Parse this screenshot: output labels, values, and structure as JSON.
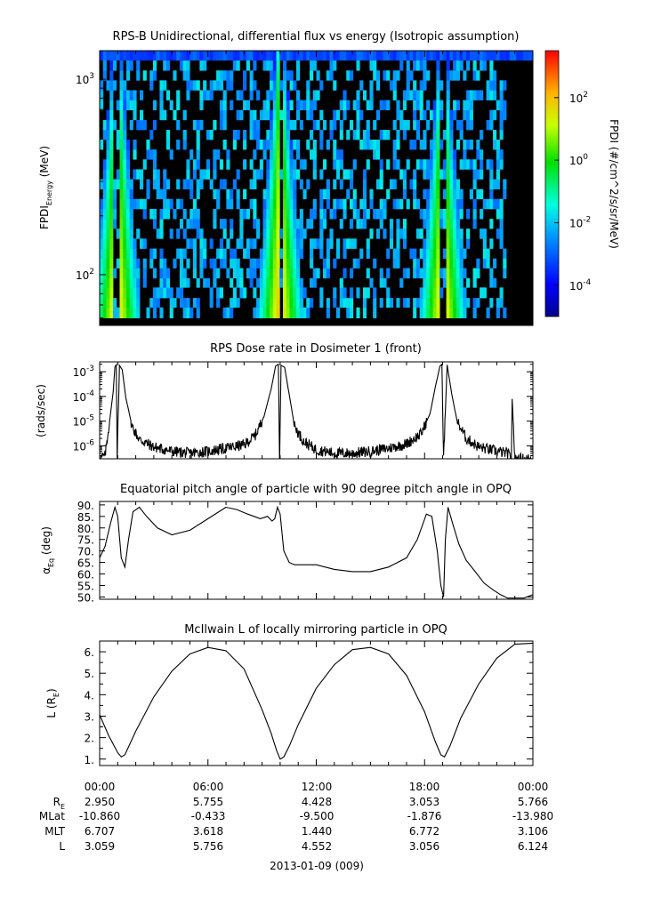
{
  "colors": {
    "background": "#ffffff",
    "axis": "#000000",
    "spectrogram_background": "#000000"
  },
  "chart_data": [
    {
      "type": "heatmap",
      "title": "RPS-B  Unidirectional, differential flux vs energy (Isotropic assumption)",
      "ylabel_main": "FPDI",
      "ylabel_sub": "Energy",
      "ylabel_unit": " (MeV)",
      "y_scale": "log",
      "ylim": [
        55,
        1400
      ],
      "ytick_labels": [
        {
          "value": 100,
          "base": "10",
          "exp": "2"
        },
        {
          "value": 1000,
          "base": "10",
          "exp": "3"
        }
      ],
      "energy_bins_mev": [
        60,
        68,
        76,
        86,
        96,
        108,
        121,
        136,
        153,
        172,
        193,
        217,
        244,
        274,
        308,
        346,
        389,
        437,
        491,
        551,
        619,
        696,
        782,
        879,
        987,
        1109,
        1250
      ],
      "xlim_hours": [
        0,
        24
      ],
      "belt_crossings_hours": [
        0.95,
        10.0,
        19.0
      ],
      "colorbar": {
        "label": "FPDI (#/cm^2/s/sr/MeV)",
        "scale": "log",
        "range_log10": [
          -5,
          3.5
        ],
        "tick_labels": [
          {
            "log10": 2,
            "base": "10",
            "exp": "2"
          },
          {
            "log10": 0,
            "base": "10",
            "exp": "0"
          },
          {
            "log10": -2,
            "base": "10",
            "exp": "-2"
          },
          {
            "log10": -4,
            "base": "10",
            "exp": "-4"
          }
        ]
      }
    },
    {
      "type": "line",
      "title": "RPS  Dose rate in Dosimeter 1 (front)",
      "ylabel": "(rads/sec)",
      "y_scale": "log",
      "ylim": [
        3e-07,
        0.0025
      ],
      "ytick_labels": [
        {
          "value": 0.001,
          "base": "10",
          "exp": "-3"
        },
        {
          "value": 0.0001,
          "base": "10",
          "exp": "-4"
        },
        {
          "value": 1e-05,
          "base": "10",
          "exp": "-5"
        },
        {
          "value": 1e-06,
          "base": "10",
          "exp": "-6"
        }
      ],
      "x": [
        0,
        0.3,
        0.55,
        0.75,
        0.85,
        0.92,
        0.97,
        1.1,
        1.25,
        1.45,
        1.8,
        2.2,
        3,
        4,
        5,
        6,
        7,
        8,
        8.6,
        9.1,
        9.5,
        9.75,
        9.9,
        9.97,
        10.05,
        10.25,
        10.5,
        10.8,
        11.3,
        12,
        13,
        14,
        15,
        16,
        17,
        17.8,
        18.3,
        18.6,
        18.85,
        18.96,
        19.05,
        19.25,
        19.5,
        19.8,
        20.3,
        21,
        22,
        22.6,
        22.8,
        22.85,
        23,
        24
      ],
      "values": [
        3e-07,
        4e-07,
        1e-05,
        0.00015,
        0.0016,
        0.0019,
        3e-07,
        0.0018,
        0.0012,
        9e-05,
        6e-06,
        1.8e-06,
        9e-07,
        6e-07,
        5e-07,
        6e-07,
        8e-07,
        1.1e-06,
        2.5e-06,
        1.5e-05,
        0.0002,
        0.0017,
        0.002,
        3e-07,
        0.0018,
        0.0015,
        0.00012,
        6e-06,
        1.5e-06,
        7e-07,
        5e-07,
        5e-07,
        6e-07,
        8e-07,
        1.2e-06,
        3e-06,
        2e-05,
        0.00025,
        0.0017,
        0.002,
        3e-07,
        0.0019,
        0.00013,
        1e-05,
        2e-06,
        9e-07,
        6e-07,
        5e-07,
        3e-07,
        8e-05,
        3e-07,
        3e-07
      ]
    },
    {
      "type": "line",
      "title": "Equatorial pitch angle of particle with 90 degree pitch angle in OPQ",
      "ylabel_main": "α",
      "ylabel_sub": "Eq",
      "ylabel_unit": " (deg)",
      "ylim": [
        49,
        91.5
      ],
      "ytick_labels": [
        "50.",
        "55.",
        "60.",
        "65.",
        "70.",
        "75.",
        "80.",
        "85.",
        "90."
      ],
      "x": [
        0,
        0.3,
        0.6,
        0.85,
        1.0,
        1.2,
        1.4,
        1.6,
        1.85,
        2.2,
        2.6,
        3.2,
        4,
        5,
        6,
        7,
        7.6,
        8.2,
        8.9,
        9.3,
        9.55,
        9.7,
        9.85,
        10.0,
        10.2,
        10.5,
        10.8,
        11.2,
        12,
        13,
        14,
        15,
        16,
        17,
        17.6,
        18.1,
        18.4,
        18.7,
        18.9,
        19.05,
        19.15,
        19.3,
        19.55,
        19.9,
        20.3,
        20.8,
        21.3,
        21.8,
        22.2,
        22.6,
        23,
        23.5,
        24
      ],
      "values": [
        67,
        72,
        82,
        89,
        85,
        67,
        63,
        75,
        87,
        89,
        85,
        80,
        77,
        79,
        84,
        89,
        88,
        86,
        84,
        85,
        83,
        84,
        89,
        86,
        70,
        65,
        64,
        64,
        64,
        62,
        61,
        61,
        63,
        67,
        75,
        86,
        85,
        70,
        55,
        50,
        75,
        89,
        82,
        73,
        66,
        61,
        56,
        53,
        51,
        49.5,
        49.5,
        49.5,
        51
      ]
    },
    {
      "type": "line",
      "title": "McIlwain L of locally mirroring particle in OPQ",
      "ylabel_main": "L (R",
      "ylabel_sub": "E",
      "ylabel_unit": ")",
      "ylim": [
        0.7,
        6.5
      ],
      "ytick_labels": [
        "1.",
        "2.",
        "3.",
        "4.",
        "5.",
        "6."
      ],
      "x": [
        0,
        0.5,
        1.0,
        1.2,
        1.4,
        2.0,
        3.0,
        4.0,
        5.0,
        6.0,
        7.0,
        8.0,
        9.0,
        9.5,
        9.8,
        10.0,
        10.2,
        10.5,
        11.0,
        12.0,
        13.0,
        14.0,
        15.0,
        16.0,
        17.0,
        18.0,
        18.6,
        18.9,
        19.1,
        19.4,
        20.0,
        21.0,
        22.0,
        23.0,
        24.0
      ],
      "values": [
        3.06,
        2.1,
        1.3,
        1.1,
        1.2,
        2.3,
        3.9,
        5.1,
        5.9,
        6.2,
        6.05,
        5.2,
        3.3,
        2.2,
        1.4,
        1.0,
        1.1,
        1.6,
        2.6,
        4.3,
        5.4,
        6.1,
        6.2,
        5.9,
        4.9,
        3.2,
        1.8,
        1.2,
        1.1,
        1.6,
        2.9,
        4.5,
        5.7,
        6.35,
        6.4
      ]
    }
  ],
  "time_axis": {
    "tick_labels": [
      "00:00",
      "06:00",
      "12:00",
      "18:00",
      "00:00"
    ],
    "date_label": "2013-01-09 (009)"
  },
  "ephemeris": {
    "rows": [
      {
        "label_main": "R",
        "label_sub": "E",
        "values": [
          "2.950",
          "5.755",
          "4.428",
          "3.053",
          "5.766"
        ]
      },
      {
        "label_main": "MLat",
        "label_sub": "",
        "values": [
          "-10.860",
          "-0.433",
          "-9.500",
          "-1.876",
          "-13.980"
        ]
      },
      {
        "label_main": "MLT",
        "label_sub": "",
        "values": [
          "6.707",
          "3.618",
          "1.440",
          "6.772",
          "3.106"
        ]
      },
      {
        "label_main": "L",
        "label_sub": "",
        "values": [
          "3.059",
          "5.756",
          "4.552",
          "3.056",
          "6.124"
        ]
      }
    ]
  }
}
